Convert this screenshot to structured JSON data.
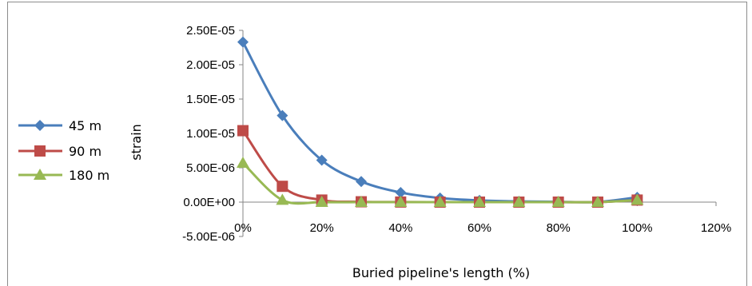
{
  "chart_data": {
    "type": "line",
    "title": "",
    "xlabel": "Buried pipeline's length (%)",
    "ylabel": "strain",
    "x": [
      0,
      10,
      20,
      30,
      40,
      50,
      60,
      70,
      80,
      90,
      100
    ],
    "xlim": [
      0,
      120
    ],
    "ylim": [
      -5e-06,
      2.5e-05
    ],
    "x_ticks": [
      0,
      20,
      40,
      60,
      80,
      100,
      120
    ],
    "x_tick_labels": [
      "0%",
      "20%",
      "40%",
      "60%",
      "80%",
      "100%",
      "120%"
    ],
    "y_ticks": [
      -5e-06,
      0,
      5e-06,
      1e-05,
      1.5e-05,
      2e-05,
      2.5e-05
    ],
    "y_tick_labels": [
      "-5.00E-06",
      "0.00E+00",
      "5.00E-06",
      "1.00E-05",
      "1.50E-05",
      "2.00E-05",
      "2.50E-05"
    ],
    "grid": false,
    "legend_position": "left",
    "series": [
      {
        "name": "45 m",
        "color": "#4a7ebb",
        "marker": "diamond",
        "values": [
          2.33e-05,
          1.26e-05,
          6.1e-06,
          3e-06,
          1.4e-06,
          6e-07,
          2.5e-07,
          1e-07,
          5e-08,
          3e-08,
          7e-07
        ]
      },
      {
        "name": "90 m",
        "color": "#be4b48",
        "marker": "square",
        "values": [
          1.04e-05,
          2.3e-06,
          3e-07,
          5e-08,
          1e-08,
          0,
          0,
          0,
          0,
          0,
          3e-07
        ]
      },
      {
        "name": "180 m",
        "color": "#98b954",
        "marker": "triangle",
        "values": [
          5.7e-06,
          3e-07,
          0,
          0,
          0,
          0,
          0,
          0,
          0,
          0,
          3e-07
        ]
      }
    ]
  }
}
